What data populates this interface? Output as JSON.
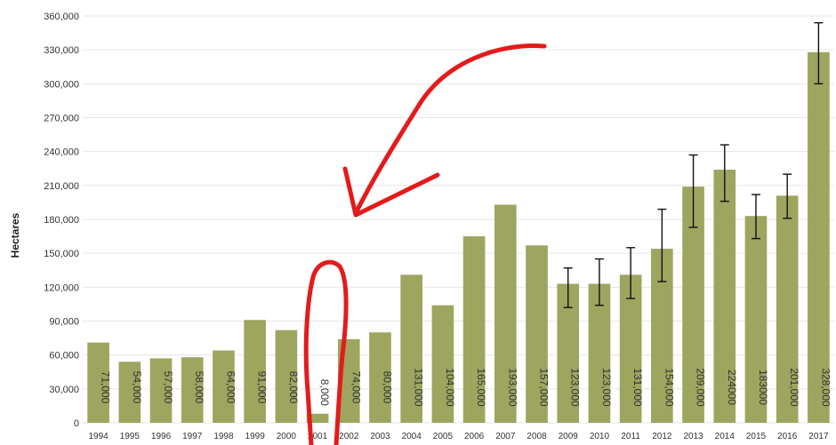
{
  "colors": {
    "bar": "#9ea55f",
    "annotation": "#e31b1b",
    "grid": "#e6e6e6"
  },
  "chart_data": {
    "type": "bar",
    "ylabel": "Hectares",
    "xlabel": "",
    "ylim": [
      0,
      360000
    ],
    "yticks": [
      0,
      30000,
      60000,
      90000,
      120000,
      150000,
      180000,
      210000,
      240000,
      270000,
      300000,
      330000,
      360000
    ],
    "ytick_labels": [
      "0",
      "30,000",
      "60,000",
      "90,000",
      "120,000",
      "150,000",
      "180,000",
      "210,000",
      "240,000",
      "270,000",
      "300,000",
      "330,000",
      "360,000"
    ],
    "grid": true,
    "legend": "none",
    "categories": [
      "1994",
      "1995",
      "1996",
      "1997",
      "1998",
      "1999",
      "2000",
      "2001",
      "2002",
      "2003",
      "2004",
      "2005",
      "2006",
      "2007",
      "2008",
      "2009",
      "2010",
      "2011",
      "2012",
      "2013",
      "2014",
      "2015",
      "2016",
      "2017"
    ],
    "values": [
      71000,
      54000,
      57000,
      58000,
      64000,
      91000,
      82000,
      8000,
      74000,
      80000,
      131000,
      104000,
      165000,
      193000,
      157000,
      123000,
      123000,
      131000,
      154000,
      209000,
      224000,
      183000,
      201000,
      328000
    ],
    "data_labels": [
      "71,000",
      "54,000",
      "57,000",
      "58,000",
      "64,000",
      "91,000",
      "82,000",
      "8,000",
      "74,000",
      "80,000",
      "131,000",
      "104,000",
      "165,000",
      "193,000",
      "157,000",
      "123,000",
      "123,000",
      "131,000",
      "154,000",
      "209,000",
      "224000",
      "183000",
      "201,000",
      "328,000"
    ],
    "error_bars": [
      null,
      null,
      null,
      null,
      null,
      null,
      null,
      null,
      null,
      null,
      null,
      null,
      null,
      null,
      null,
      [
        102000,
        137000
      ],
      [
        104000,
        145000
      ],
      [
        110000,
        155000
      ],
      [
        125000,
        189000
      ],
      [
        173000,
        237000
      ],
      [
        196000,
        246000
      ],
      [
        163000,
        202000
      ],
      [
        181000,
        220000
      ],
      [
        300000,
        354000
      ]
    ]
  }
}
